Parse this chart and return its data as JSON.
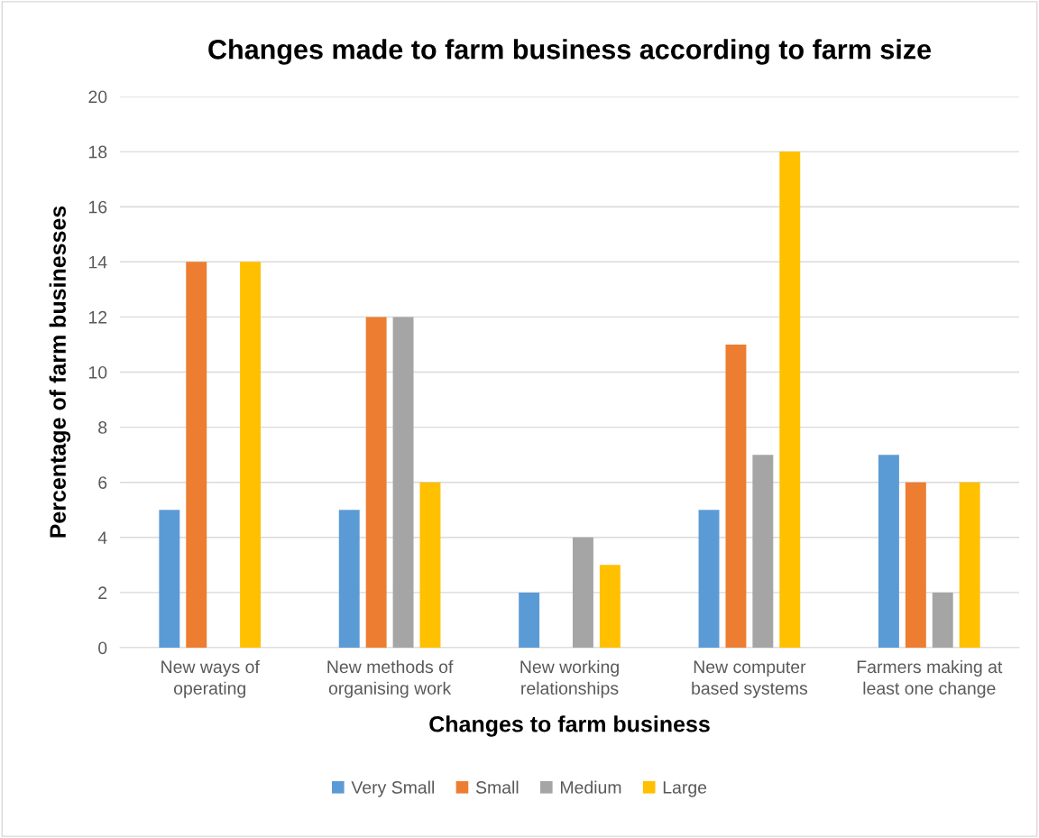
{
  "chart_data": {
    "type": "bar",
    "title": "Changes made to farm business according to farm size",
    "xlabel": "Changes to farm business",
    "ylabel": "Percentage of farm businesses",
    "categories": [
      "New ways of\noperating",
      "New methods of\norganising work",
      "New working\nrelationships",
      "New computer\nbased systems",
      "Farmers making at\nleast one change"
    ],
    "series": [
      {
        "name": "Very Small",
        "color": "#5b9bd5",
        "values": [
          5,
          5,
          2,
          5,
          7
        ]
      },
      {
        "name": "Small",
        "color": "#ed7d31",
        "values": [
          14,
          12,
          0,
          11,
          6
        ]
      },
      {
        "name": "Medium",
        "color": "#a5a5a5",
        "values": [
          0,
          12,
          4,
          7,
          2
        ]
      },
      {
        "name": "Large",
        "color": "#ffc000",
        "values": [
          14,
          6,
          3,
          18,
          6
        ]
      }
    ],
    "ylim": [
      0,
      20
    ],
    "yticks": [
      0,
      2,
      4,
      6,
      8,
      10,
      12,
      14,
      16,
      18,
      20
    ],
    "grid": "y",
    "legend": "bottom"
  }
}
